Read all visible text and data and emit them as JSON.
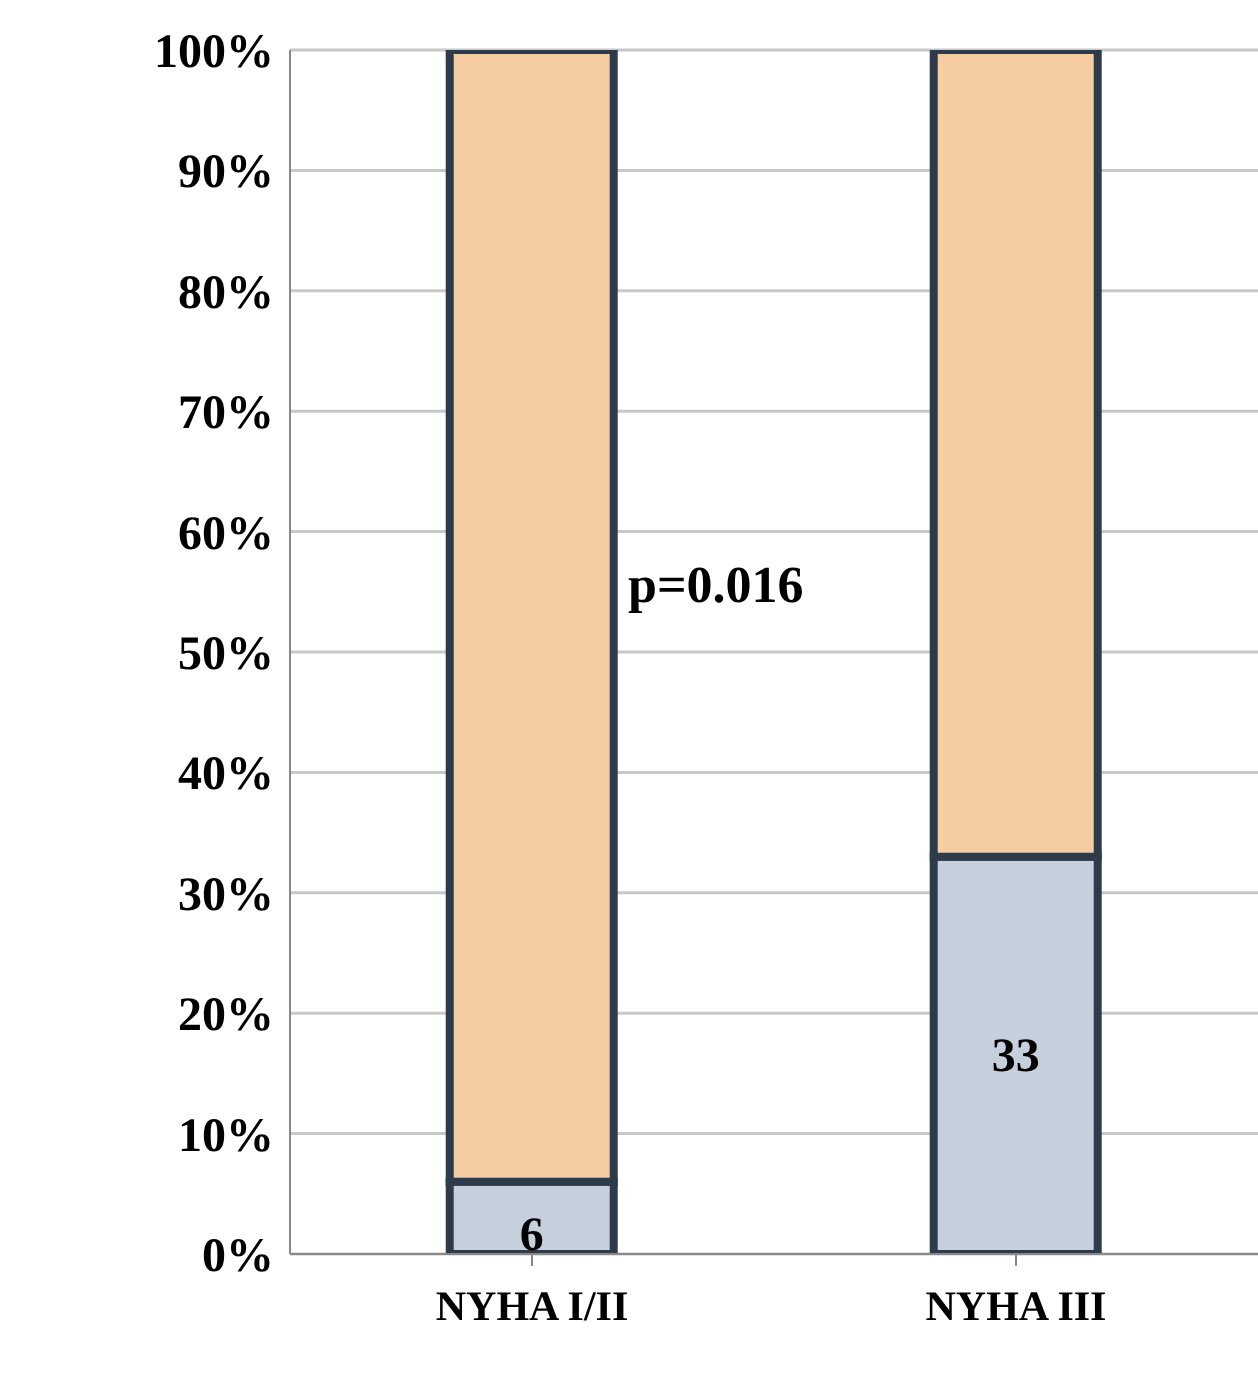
{
  "chart_data": {
    "type": "bar",
    "stacked": true,
    "categories": [
      "NYHA I/II",
      "NYHA III"
    ],
    "series": [
      {
        "color": "#c6cfdc",
        "values": [
          6,
          33
        ],
        "value_labels": [
          "6",
          "33"
        ]
      },
      {
        "color": "#f6cda3",
        "values": [
          94,
          67
        ]
      }
    ],
    "ylim": [
      0,
      100
    ],
    "yticks": [
      {
        "value": 0,
        "label": "0%"
      },
      {
        "value": 10,
        "label": "10%"
      },
      {
        "value": 20,
        "label": "20%"
      },
      {
        "value": 30,
        "label": "30%"
      },
      {
        "value": 40,
        "label": "40%"
      },
      {
        "value": 50,
        "label": "50%"
      },
      {
        "value": 60,
        "label": "60%"
      },
      {
        "value": 70,
        "label": "70%"
      },
      {
        "value": 80,
        "label": "80%"
      },
      {
        "value": 90,
        "label": "90%"
      },
      {
        "value": 100,
        "label": "100%"
      }
    ],
    "grid": "y",
    "annotations": [
      "p=0.016"
    ]
  }
}
